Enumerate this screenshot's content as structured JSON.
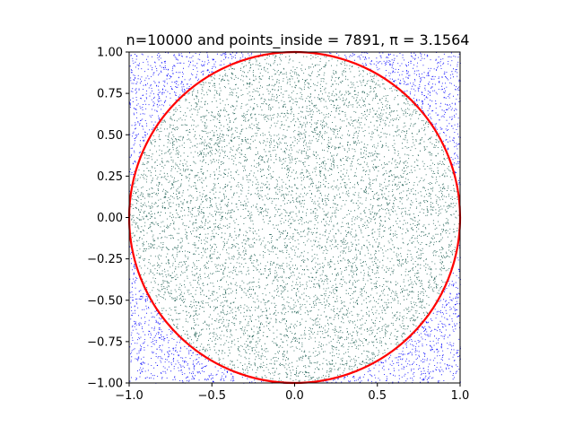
{
  "chart_data": {
    "type": "scatter",
    "title": "n=10000 and points_inside = 7891, π = 3.1564",
    "xlabel": "",
    "ylabel": "",
    "xlim": [
      -1.0,
      1.0
    ],
    "ylim": [
      -1.0,
      1.0
    ],
    "xticks": [
      -1.0,
      -0.5,
      0.0,
      0.5,
      1.0
    ],
    "xtick_labels": [
      "−1.0",
      "−0.5",
      "0.0",
      "0.5",
      "1.0"
    ],
    "yticks": [
      -1.0,
      -0.75,
      -0.5,
      -0.25,
      0.0,
      0.25,
      0.5,
      0.75,
      1.0
    ],
    "ytick_labels": [
      "−1.00",
      "−0.75",
      "−0.50",
      "−0.25",
      "0.00",
      "0.25",
      "0.50",
      "0.75",
      "1.00"
    ],
    "grid": false,
    "n_points": 10000,
    "points_inside": 7891,
    "pi_estimate": 3.1564,
    "series": [
      {
        "color": "#0000ff",
        "region": "outside"
      },
      {
        "color": "#1a5c50",
        "region": "inside"
      }
    ],
    "circle": {
      "center": [
        0,
        0
      ],
      "radius": 1,
      "color": "#ff0000"
    }
  }
}
